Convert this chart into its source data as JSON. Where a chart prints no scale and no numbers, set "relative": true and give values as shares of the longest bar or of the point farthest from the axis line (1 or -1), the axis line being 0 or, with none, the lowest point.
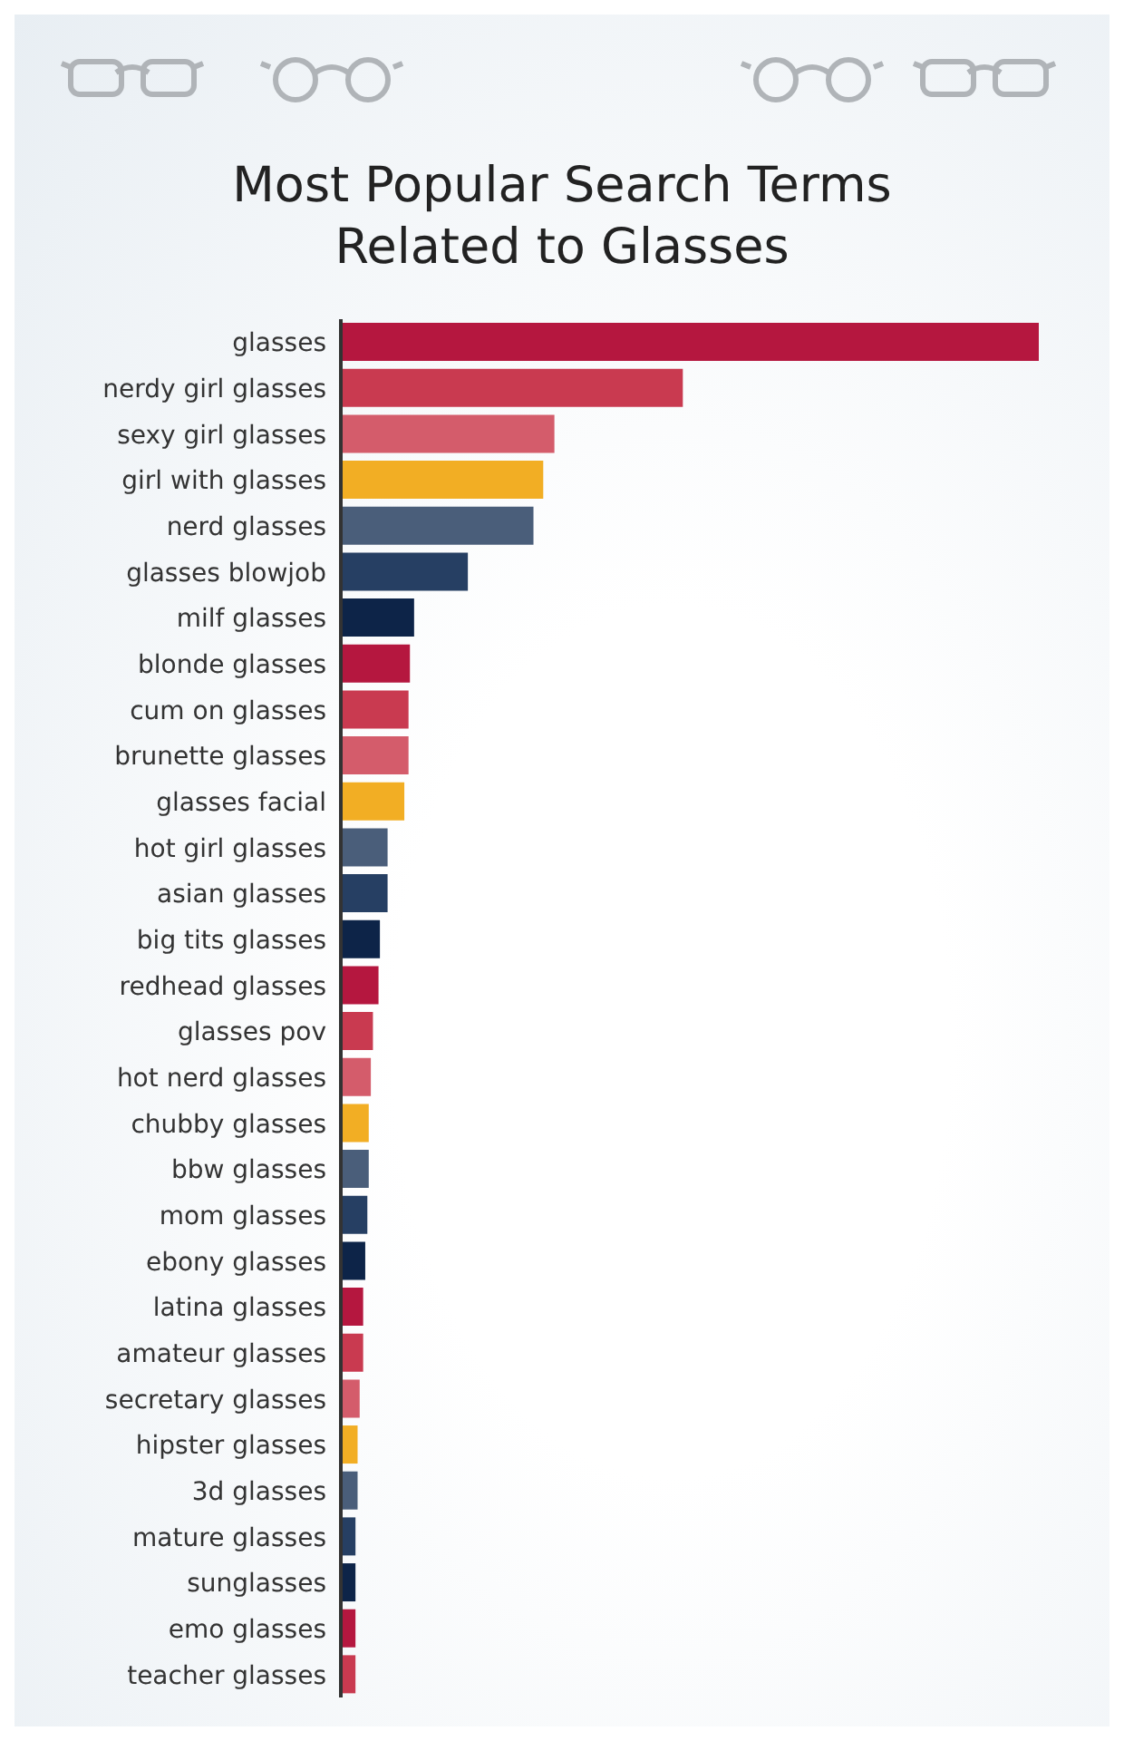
{
  "chart_data": {
    "type": "bar",
    "orientation": "horizontal",
    "relative": true,
    "title": "Most Popular Search Terms\nRelated to Glasses",
    "categories": [
      "glasses",
      "nerdy girl glasses",
      "sexy girl glasses",
      "girl with glasses",
      "nerd glasses",
      "glasses blowjob",
      "milf glasses",
      "blonde glasses",
      "cum on glasses",
      "brunette glasses",
      "glasses facial",
      "hot girl glasses",
      "asian glasses",
      "big tits glasses",
      "redhead glasses",
      "glasses pov",
      "hot nerd glasses",
      "chubby glasses",
      "bbw glasses",
      "mom glasses",
      "ebony glasses",
      "latina glasses",
      "amateur glasses",
      "secretary glasses",
      "hipster glasses",
      "3d glasses",
      "mature glasses",
      "sunglasses",
      "emo glasses",
      "teacher glasses"
    ],
    "values": [
      1,
      0.49,
      0.306,
      0.29,
      0.276,
      0.182,
      0.105,
      0.099,
      0.097,
      0.097,
      0.091,
      0.067,
      0.067,
      0.056,
      0.054,
      0.046,
      0.043,
      0.04,
      0.04,
      0.038,
      0.035,
      0.032,
      0.032,
      0.027,
      0.024,
      0.024,
      0.021,
      0.021,
      0.021,
      0.021
    ],
    "colors": [
      "#b5173f",
      "#c93a50",
      "#d45c6b",
      "#f2ae24",
      "#4a5e7a",
      "#263f63",
      "#0d2448",
      "#b5173f",
      "#c93a50",
      "#d45c6b",
      "#f2ae24",
      "#4a5e7a",
      "#263f63",
      "#0d2448",
      "#b5173f",
      "#c93a50",
      "#d45c6b",
      "#f2ae24",
      "#4a5e7a",
      "#263f63",
      "#0d2448",
      "#b5173f",
      "#c93a50",
      "#d45c6b",
      "#f2ae24",
      "#4a5e7a",
      "#263f63",
      "#0d2448",
      "#b5173f",
      "#c93a50"
    ],
    "grid": false,
    "legend": false
  }
}
